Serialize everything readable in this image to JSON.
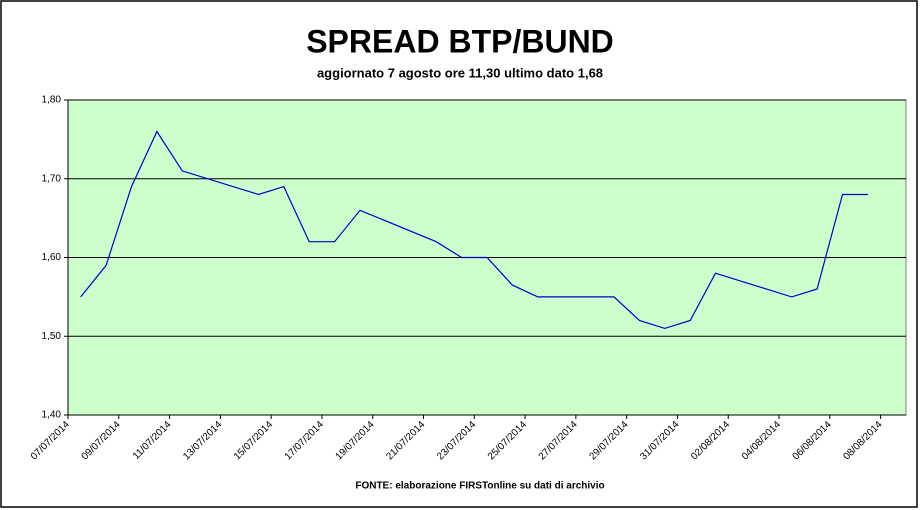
{
  "chart_data": {
    "type": "line",
    "title": "SPREAD BTP/BUND",
    "subtitle": "aggiornato 7 agosto ore 11,30 ultimo dato 1,68",
    "source": "FONTE: elaborazione FIRSTonline su dati di archivio",
    "x": [
      "07/07/2014",
      "08/07/2014",
      "09/07/2014",
      "10/07/2014",
      "11/07/2014",
      "14/07/2014",
      "15/07/2014",
      "16/07/2014",
      "17/07/2014",
      "18/07/2014",
      "21/07/2014",
      "22/07/2014",
      "23/07/2014",
      "24/07/2014",
      "25/07/2014",
      "28/07/2014",
      "29/07/2014",
      "30/07/2014",
      "31/07/2014",
      "01/08/2014",
      "04/08/2014",
      "05/08/2014",
      "06/08/2014",
      "07/08/2014"
    ],
    "values": [
      1.55,
      1.59,
      1.69,
      1.76,
      1.71,
      1.68,
      1.69,
      1.62,
      1.62,
      1.66,
      1.62,
      1.6,
      1.6,
      1.565,
      1.55,
      1.55,
      1.52,
      1.51,
      1.52,
      1.58,
      1.55,
      1.56,
      1.68,
      1.68
    ],
    "color": "#0000cc",
    "plot_background": "#ccffcc",
    "xlim": [
      "07/07/2014",
      "09/08/2014"
    ],
    "xticks": [
      "07/07/2014",
      "09/07/2014",
      "11/07/2014",
      "13/07/2014",
      "15/07/2014",
      "17/07/2014",
      "19/07/2014",
      "21/07/2014",
      "23/07/2014",
      "25/07/2014",
      "27/07/2014",
      "29/07/2014",
      "31/07/2014",
      "02/08/2014",
      "04/08/2014",
      "06/08/2014",
      "08/08/2014"
    ],
    "ylim": [
      1.4,
      1.8
    ],
    "yticks": [
      {
        "value": 1.4,
        "label": "1,40"
      },
      {
        "value": 1.5,
        "label": "1,50"
      },
      {
        "value": 1.6,
        "label": "1,60"
      },
      {
        "value": 1.7,
        "label": "1,70"
      },
      {
        "value": 1.8,
        "label": "1,80"
      }
    ],
    "grid": true
  }
}
